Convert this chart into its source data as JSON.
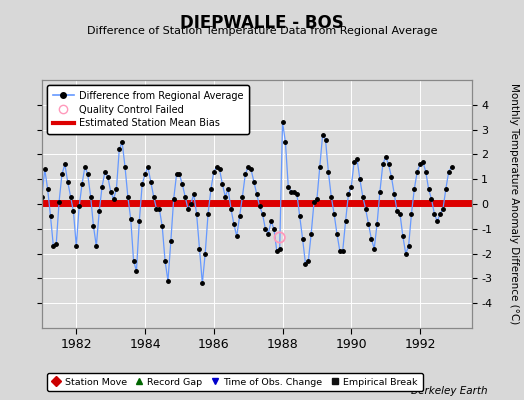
{
  "title": "DIEPWALLE - BOS",
  "subtitle": "Difference of Station Temperature Data from Regional Average",
  "ylabel": "Monthly Temperature Anomaly Difference (°C)",
  "xlim": [
    1981.0,
    1993.5
  ],
  "ylim": [
    -5,
    5
  ],
  "yticks": [
    -4,
    -3,
    -2,
    -1,
    0,
    1,
    2,
    3,
    4
  ],
  "xticks": [
    1982,
    1984,
    1986,
    1988,
    1990,
    1992
  ],
  "bias_value": 0.05,
  "line_color": "#6699ff",
  "marker_color": "#000000",
  "bias_color": "#dd0000",
  "background_color": "#d8d8d8",
  "plot_bg_color": "#dcdcdc",
  "qc_fail_x": 1987.917,
  "qc_fail_y": -1.35,
  "berkeley_earth_label": "Berkeley Earth",
  "legend_top_items": [
    "Difference from Regional Average",
    "Quality Control Failed",
    "Estimated Station Mean Bias"
  ],
  "legend_bottom_items": [
    "Station Move",
    "Record Gap",
    "Time of Obs. Change",
    "Empirical Break"
  ],
  "data_x": [
    1981.0,
    1981.083,
    1981.167,
    1981.25,
    1981.333,
    1981.417,
    1981.5,
    1981.583,
    1981.667,
    1981.75,
    1981.833,
    1981.917,
    1982.0,
    1982.083,
    1982.167,
    1982.25,
    1982.333,
    1982.417,
    1982.5,
    1982.583,
    1982.667,
    1982.75,
    1982.833,
    1982.917,
    1983.0,
    1983.083,
    1983.167,
    1983.25,
    1983.333,
    1983.417,
    1983.5,
    1983.583,
    1983.667,
    1983.75,
    1983.833,
    1983.917,
    1984.0,
    1984.083,
    1984.167,
    1984.25,
    1984.333,
    1984.417,
    1984.5,
    1984.583,
    1984.667,
    1984.75,
    1984.833,
    1984.917,
    1985.0,
    1985.083,
    1985.167,
    1985.25,
    1985.333,
    1985.417,
    1985.5,
    1985.583,
    1985.667,
    1985.75,
    1985.833,
    1985.917,
    1986.0,
    1986.083,
    1986.167,
    1986.25,
    1986.333,
    1986.417,
    1986.5,
    1986.583,
    1986.667,
    1986.75,
    1986.833,
    1986.917,
    1987.0,
    1987.083,
    1987.167,
    1987.25,
    1987.333,
    1987.417,
    1987.5,
    1987.583,
    1987.667,
    1987.75,
    1987.833,
    1987.917,
    1988.0,
    1988.083,
    1988.167,
    1988.25,
    1988.333,
    1988.417,
    1988.5,
    1988.583,
    1988.667,
    1988.75,
    1988.833,
    1988.917,
    1989.0,
    1989.083,
    1989.167,
    1989.25,
    1989.333,
    1989.417,
    1989.5,
    1989.583,
    1989.667,
    1989.75,
    1989.833,
    1989.917,
    1990.0,
    1990.083,
    1990.167,
    1990.25,
    1990.333,
    1990.417,
    1990.5,
    1990.583,
    1990.667,
    1990.75,
    1990.833,
    1990.917,
    1991.0,
    1991.083,
    1991.167,
    1991.25,
    1991.333,
    1991.417,
    1991.5,
    1991.583,
    1991.667,
    1991.75,
    1991.833,
    1991.917,
    1992.0,
    1992.083,
    1992.167,
    1992.25,
    1992.333,
    1992.417,
    1992.5,
    1992.583,
    1992.667,
    1992.75,
    1992.833,
    1992.917
  ],
  "data_y": [
    0.3,
    1.4,
    0.6,
    -0.5,
    -1.7,
    -1.6,
    0.1,
    1.2,
    1.6,
    0.9,
    0.3,
    -0.3,
    -1.7,
    -0.1,
    0.8,
    1.5,
    1.2,
    0.3,
    -0.9,
    -1.7,
    -0.3,
    0.7,
    1.3,
    1.1,
    0.5,
    0.2,
    0.6,
    2.2,
    2.5,
    1.5,
    0.3,
    -0.6,
    -2.3,
    -2.7,
    -0.7,
    0.8,
    1.2,
    1.5,
    0.9,
    0.3,
    -0.2,
    -0.2,
    -0.9,
    -2.3,
    -3.1,
    -1.5,
    0.2,
    1.2,
    1.2,
    0.8,
    0.3,
    -0.2,
    0.0,
    0.4,
    -0.4,
    -1.8,
    -3.2,
    -2.0,
    -0.4,
    0.6,
    1.3,
    1.5,
    1.4,
    0.8,
    0.3,
    0.6,
    -0.2,
    -0.8,
    -1.3,
    -0.5,
    0.3,
    1.2,
    1.5,
    1.4,
    0.9,
    0.4,
    -0.1,
    -0.4,
    -1.0,
    -1.2,
    -0.7,
    -1.0,
    -1.9,
    -1.8,
    3.3,
    2.5,
    0.7,
    0.5,
    0.5,
    0.4,
    -0.5,
    -1.4,
    -2.4,
    -2.3,
    -1.2,
    0.1,
    0.2,
    1.5,
    2.8,
    2.6,
    1.3,
    0.3,
    -0.4,
    -1.2,
    -1.9,
    -1.9,
    -0.7,
    0.4,
    0.7,
    1.7,
    1.8,
    1.0,
    0.3,
    -0.2,
    -0.8,
    -1.4,
    -1.8,
    -0.8,
    0.5,
    1.6,
    1.9,
    1.6,
    1.1,
    0.4,
    -0.3,
    -0.4,
    -1.3,
    -2.0,
    -1.7,
    -0.4,
    0.6,
    1.3,
    1.6,
    1.7,
    1.3,
    0.6,
    0.2,
    -0.4,
    -0.7,
    -0.4,
    -0.2,
    0.6,
    1.3,
    1.5
  ]
}
